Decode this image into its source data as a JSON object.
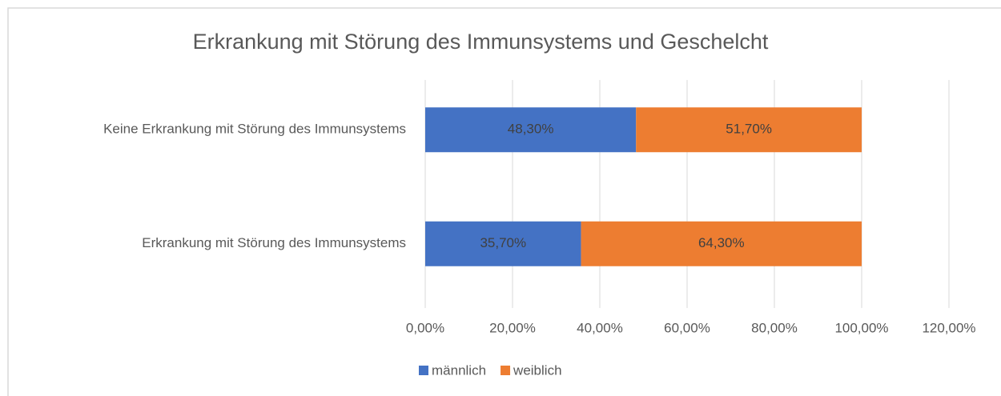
{
  "chart_data": {
    "type": "stacked_bar_horizontal",
    "title": "Erkrankung mit Störung des Immunsystems und Geschelcht",
    "categories": [
      "Keine Erkrankung mit Störung des Immunsystems",
      "Erkrankung mit Störung des Immunsystems"
    ],
    "series": [
      {
        "name": "männlich",
        "color": "#4472c4",
        "values": [
          48.3,
          35.7
        ],
        "value_labels": [
          "48,30%",
          "35,70%"
        ]
      },
      {
        "name": "weiblich",
        "color": "#ed7d31",
        "values": [
          51.7,
          64.3
        ],
        "value_labels": [
          "51,70%",
          "64,30%"
        ]
      }
    ],
    "xlim": [
      0,
      120
    ],
    "xticks": [
      {
        "value": 0,
        "label": "0,00%"
      },
      {
        "value": 20,
        "label": "20,00%"
      },
      {
        "value": 40,
        "label": "40,00%"
      },
      {
        "value": 60,
        "label": "60,00%"
      },
      {
        "value": 80,
        "label": "80,00%"
      },
      {
        "value": 100,
        "label": "100,00%"
      },
      {
        "value": 120,
        "label": "120,00%"
      }
    ],
    "grid": true,
    "legend": "bottom"
  }
}
